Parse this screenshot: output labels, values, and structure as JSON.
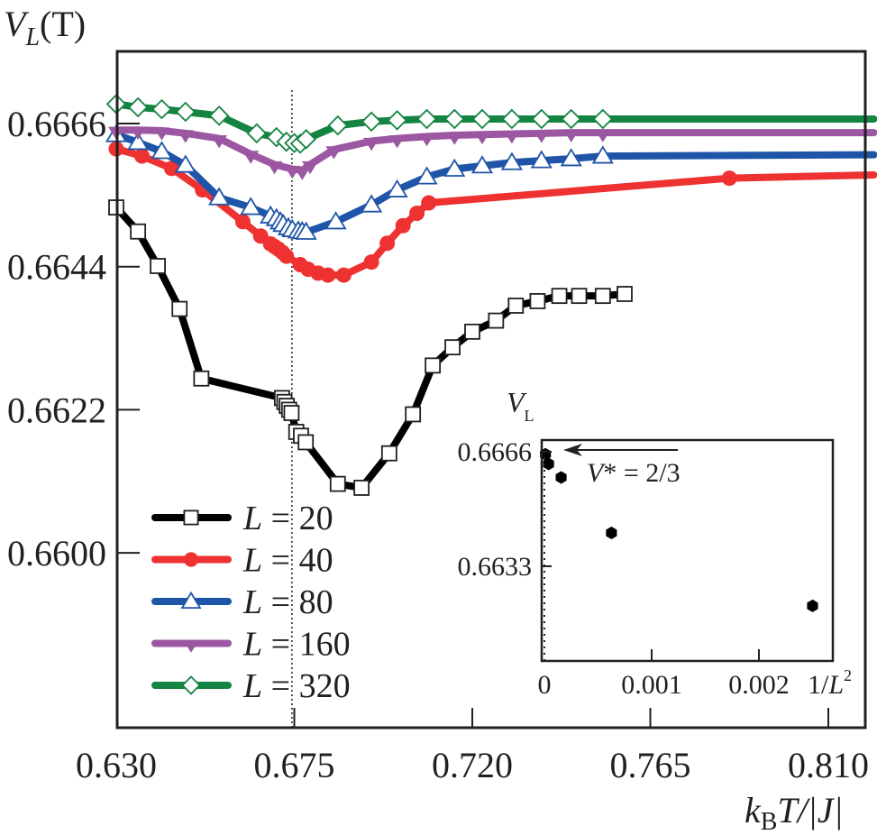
{
  "chart_data": {
    "type": "line",
    "title": "",
    "ylabel": {
      "main": "V",
      "sub": "L",
      "suffix": "(T)"
    },
    "xlabel": {
      "k": "k",
      "ksub": "B",
      "rest": "T/|J|"
    },
    "xlim": [
      0.63,
      0.8215
    ],
    "ylim": [
      0.6587,
      0.6675
    ],
    "xticks": [
      0.63,
      0.675,
      0.72,
      0.765,
      0.81
    ],
    "xtick_labels": [
      "0.630",
      "0.675",
      "0.720",
      "0.765",
      "0.810"
    ],
    "yticks": [
      0.6666,
      0.6644,
      0.6622,
      0.66
    ],
    "ytick_labels": [
      "0.6666",
      "0.6644",
      "0.6622",
      "0.6600"
    ],
    "grid": false,
    "legend_position": "bottom-left",
    "critical_temperature_line": 0.6744,
    "series": [
      {
        "name": "L = 20",
        "label_L": "L",
        "label_value": "20",
        "color": "#000000",
        "marker": "square-open",
        "x": [
          0.63,
          0.6355,
          0.6405,
          0.646,
          0.6515,
          0.6719,
          0.6725,
          0.6731,
          0.6737,
          0.6743,
          0.6755,
          0.6767,
          0.6779,
          0.686,
          0.692,
          0.699,
          0.705,
          0.71,
          0.715,
          0.72,
          0.726,
          0.731,
          0.7365,
          0.742,
          0.747,
          0.753,
          0.7585
        ],
        "y": [
          0.66531,
          0.66494,
          0.66441,
          0.66375,
          0.66268,
          0.66238,
          0.66232,
          0.66226,
          0.6622,
          0.66215,
          0.66186,
          0.6618,
          0.6617,
          0.66106,
          0.661,
          0.66153,
          0.66213,
          0.66288,
          0.66316,
          0.6634,
          0.66357,
          0.6638,
          0.66387,
          0.66395,
          0.66395,
          0.66395,
          0.66398
        ]
      },
      {
        "name": "L = 40",
        "label_L": "L",
        "label_value": "40",
        "color": "#ee3131",
        "marker": "circle-filled",
        "x": [
          0.63,
          0.6365,
          0.644,
          0.6518,
          0.662,
          0.6665,
          0.669,
          0.67,
          0.671,
          0.672,
          0.673,
          0.6765,
          0.6785,
          0.681,
          0.6835,
          0.6875,
          0.6945,
          0.6985,
          0.7025,
          0.706,
          0.709,
          0.785,
          0.8215
        ],
        "y": [
          0.66621,
          0.6661,
          0.66591,
          0.66558,
          0.66509,
          0.66487,
          0.66475,
          0.66471,
          0.66467,
          0.66462,
          0.66456,
          0.66443,
          0.66436,
          0.6643,
          0.66427,
          0.66427,
          0.66447,
          0.66476,
          0.66503,
          0.66522,
          0.66538,
          0.66576,
          0.66581
        ]
      },
      {
        "name": "L = 80",
        "label_L": "L",
        "label_value": "80",
        "color": "#1f55a8",
        "marker": "triangle-up-open",
        "x": [
          0.63,
          0.6355,
          0.6415,
          0.6475,
          0.656,
          0.664,
          0.669,
          0.6705,
          0.6715,
          0.6722,
          0.6735,
          0.6745,
          0.676,
          0.677,
          0.678,
          0.6855,
          0.6945,
          0.701,
          0.7085,
          0.7155,
          0.7225,
          0.73,
          0.7375,
          0.745,
          0.753,
          0.8215
        ],
        "y": [
          0.66643,
          0.66631,
          0.66617,
          0.66596,
          0.66546,
          0.66531,
          0.66518,
          0.66514,
          0.66509,
          0.66505,
          0.665,
          0.66497,
          0.66495,
          0.66494,
          0.66493,
          0.66509,
          0.66535,
          0.66558,
          0.66578,
          0.6659,
          0.66595,
          0.666,
          0.66603,
          0.66606,
          0.6661,
          0.66612
        ]
      },
      {
        "name": "L = 160",
        "label_L": "L",
        "label_value": "160",
        "color": "#9b57a2",
        "marker": "triangle-down-filled",
        "x": [
          0.63,
          0.6355,
          0.6415,
          0.6475,
          0.656,
          0.664,
          0.67,
          0.6745,
          0.677,
          0.679,
          0.685,
          0.6945,
          0.701,
          0.7085,
          0.7155,
          0.7225,
          0.73,
          0.7375,
          0.745,
          0.753,
          0.8215
        ],
        "y": [
          0.6665,
          0.6665,
          0.66649,
          0.66645,
          0.66637,
          0.66613,
          0.66597,
          0.6659,
          0.66588,
          0.66597,
          0.6662,
          0.66633,
          0.66637,
          0.6664,
          0.66642,
          0.66643,
          0.66644,
          0.66645,
          0.66646,
          0.66646,
          0.66646
        ]
      },
      {
        "name": "L = 320",
        "label_L": "L",
        "label_value": "320",
        "color": "#148442",
        "marker": "diamond-open",
        "x": [
          0.63,
          0.6355,
          0.6415,
          0.6475,
          0.656,
          0.6655,
          0.6705,
          0.673,
          0.675,
          0.6765,
          0.678,
          0.686,
          0.6945,
          0.701,
          0.7085,
          0.7155,
          0.7225,
          0.73,
          0.7375,
          0.745,
          0.753,
          0.8215
        ],
        "y": [
          0.6669,
          0.66685,
          0.66682,
          0.66678,
          0.66672,
          0.66645,
          0.66639,
          0.66632,
          0.6663,
          0.66629,
          0.66636,
          0.66657,
          0.66663,
          0.66665,
          0.66667,
          0.66667,
          0.66667,
          0.66667,
          0.66667,
          0.66667,
          0.66667,
          0.66667
        ]
      }
    ],
    "inset": {
      "type": "scatter",
      "ylabel": {
        "main": "V",
        "sub": "L"
      },
      "xlabel": {
        "prefix": "1/",
        "main": "L",
        "sup": "2"
      },
      "xlim": [
        -2.5e-05,
        0.0026
      ],
      "ylim": [
        0.66185,
        0.66679
      ],
      "xticks": [
        0,
        0.001,
        0.002
      ],
      "xtick_labels": [
        "0",
        "0.001",
        "0.002"
      ],
      "yticks": [
        0.6666,
        0.6633
      ],
      "ytick_labels": [
        "0.6666",
        "0.6633"
      ],
      "annotation": {
        "text_main": "V",
        "text_rest": "* = 2/3",
        "target_value": 0.66667
      },
      "points": [
        {
          "x": 9.8e-06,
          "y": 0.66653
        },
        {
          "x": 3.9e-05,
          "y": 0.66625
        },
        {
          "x": 0.000156,
          "y": 0.66586
        },
        {
          "x": 0.000625,
          "y": 0.66426
        },
        {
          "x": 0.0025,
          "y": 0.66216
        }
      ],
      "color": "#000000"
    }
  }
}
